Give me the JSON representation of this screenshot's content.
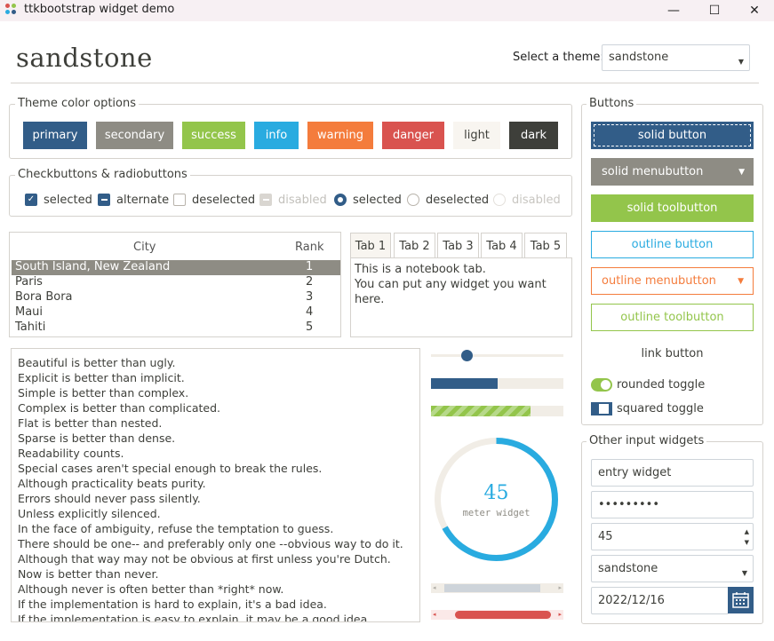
{
  "window": {
    "title": "ttkbootstrap widget demo",
    "minimize": "—",
    "maximize": "☐",
    "close": "✕"
  },
  "header": {
    "theme_name": "sandstone",
    "select_label": "Select a theme:",
    "select_value": "sandstone"
  },
  "color_options": {
    "title": "Theme color options",
    "buttons": [
      {
        "label": "primary",
        "color": "#325d88"
      },
      {
        "label": "secondary",
        "color": "#8e8c84"
      },
      {
        "label": "success",
        "color": "#93c54b"
      },
      {
        "label": "info",
        "color": "#29abe0"
      },
      {
        "label": "warning",
        "color": "#f47c3c"
      },
      {
        "label": "danger",
        "color": "#d9534f"
      },
      {
        "label": "light",
        "color": "#f8f5f0"
      },
      {
        "label": "dark",
        "color": "#3e3f3a"
      }
    ]
  },
  "checks": {
    "title": "Checkbuttons & radiobuttons",
    "items": [
      "selected",
      "alternate",
      "deselected",
      "disabled",
      "selected",
      "deselected",
      "disabled"
    ]
  },
  "table": {
    "headers": [
      "City",
      "Rank"
    ],
    "rows": [
      {
        "city": "South Island, New Zealand",
        "rank": "1"
      },
      {
        "city": "Paris",
        "rank": "2"
      },
      {
        "city": "Bora Bora",
        "rank": "3"
      },
      {
        "city": "Maui",
        "rank": "4"
      },
      {
        "city": "Tahiti",
        "rank": "5"
      }
    ]
  },
  "notebook": {
    "tabs": [
      "Tab 1",
      "Tab 2",
      "Tab 3",
      "Tab 4",
      "Tab 5"
    ],
    "content": [
      "This is a notebook tab.",
      "You can put any widget you want here."
    ]
  },
  "zen_text": "Beautiful is better than ugly.\nExplicit is better than implicit.\nSimple is better than complex.\nComplex is better than complicated.\nFlat is better than nested.\nSparse is better than dense.\nReadability counts.\nSpecial cases aren't special enough to break the rules.\nAlthough practicality beats purity.\nErrors should never pass silently.\nUnless explicitly silenced.\nIn the face of ambiguity, refuse the temptation to guess.\nThere should be one-- and preferably only one --obvious way to do it.\nAlthough that way may not be obvious at first unless you're Dutch.\nNow is better than never.\nAlthough never is often better than *right* now.\nIf the implementation is hard to explain, it's a bad idea.\nIf the implementation is easy to explain, it may be a good idea.",
  "widgets": {
    "scale_value": 0.27,
    "progress_value": 0.5,
    "striped_value": 0.75,
    "meter": {
      "value": "45",
      "label": "meter widget",
      "fraction": 0.67
    },
    "hscroll_value": 0.2,
    "danger_scroll_value": 0.85
  },
  "buttons_panel": {
    "title": "Buttons",
    "solid_button": "solid button",
    "solid_menubutton": "solid menubutton",
    "solid_toolbutton": "solid toolbutton",
    "outline_button": "outline button",
    "outline_menubutton": "outline menubutton",
    "outline_toolbutton": "outline toolbutton",
    "link_button": "link button",
    "rounded_toggle": "rounded toggle",
    "squared_toggle": "squared toggle"
  },
  "inputs": {
    "title": "Other input widgets",
    "entry": "entry widget",
    "password": "•••••••••",
    "spinbox": "45",
    "combobox": "sandstone",
    "date": "2022/12/16"
  }
}
